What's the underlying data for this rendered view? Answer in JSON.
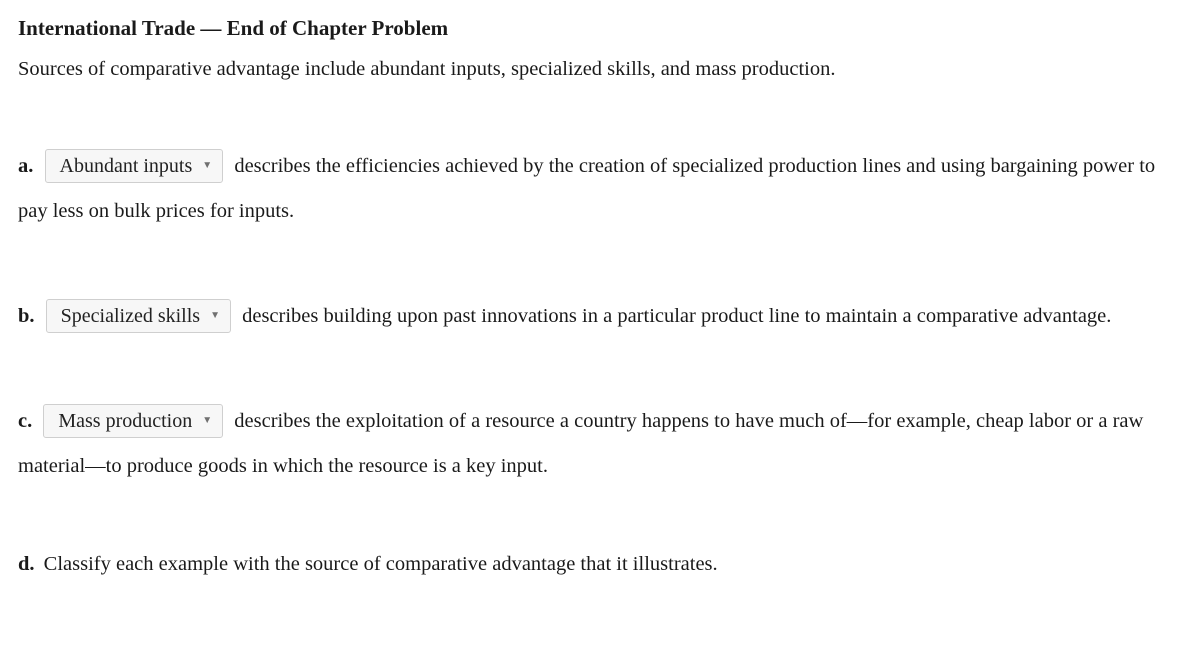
{
  "title": "International Trade — End of Chapter Problem",
  "intro": "Sources of comparative advantage include abundant inputs, specialized skills, and mass production.",
  "questions": {
    "a": {
      "label": "a.",
      "dropdown_value": "Abundant inputs",
      "text_after": " describes the efficiencies achieved by the creation of specialized production lines and using bargaining power to pay less on bulk prices for inputs."
    },
    "b": {
      "label": "b.",
      "dropdown_value": "Specialized skills",
      "text_after": " describes building upon past innovations in a particular product line to maintain a comparative advantage."
    },
    "c": {
      "label": "c.",
      "dropdown_value": "Mass production",
      "text_after": " describes the exploitation of a resource a country happens to have much of—for example, cheap labor or a raw material—to produce goods in which the resource is a key input."
    },
    "d": {
      "label": "d.",
      "text": " Classify each example with the source of comparative advantage that it illustrates."
    }
  },
  "dropdown_options": [
    "Abundant inputs",
    "Specialized skills",
    "Mass production"
  ],
  "colors": {
    "page_bg": "#ffffff",
    "text": "#1a1a1a",
    "dropdown_bg": "#f7f7f7",
    "dropdown_border": "#cfcfcf",
    "caret": "#707070"
  },
  "typography": {
    "family": "Georgia serif",
    "body_size_pt": 15,
    "title_weight": "bold"
  }
}
